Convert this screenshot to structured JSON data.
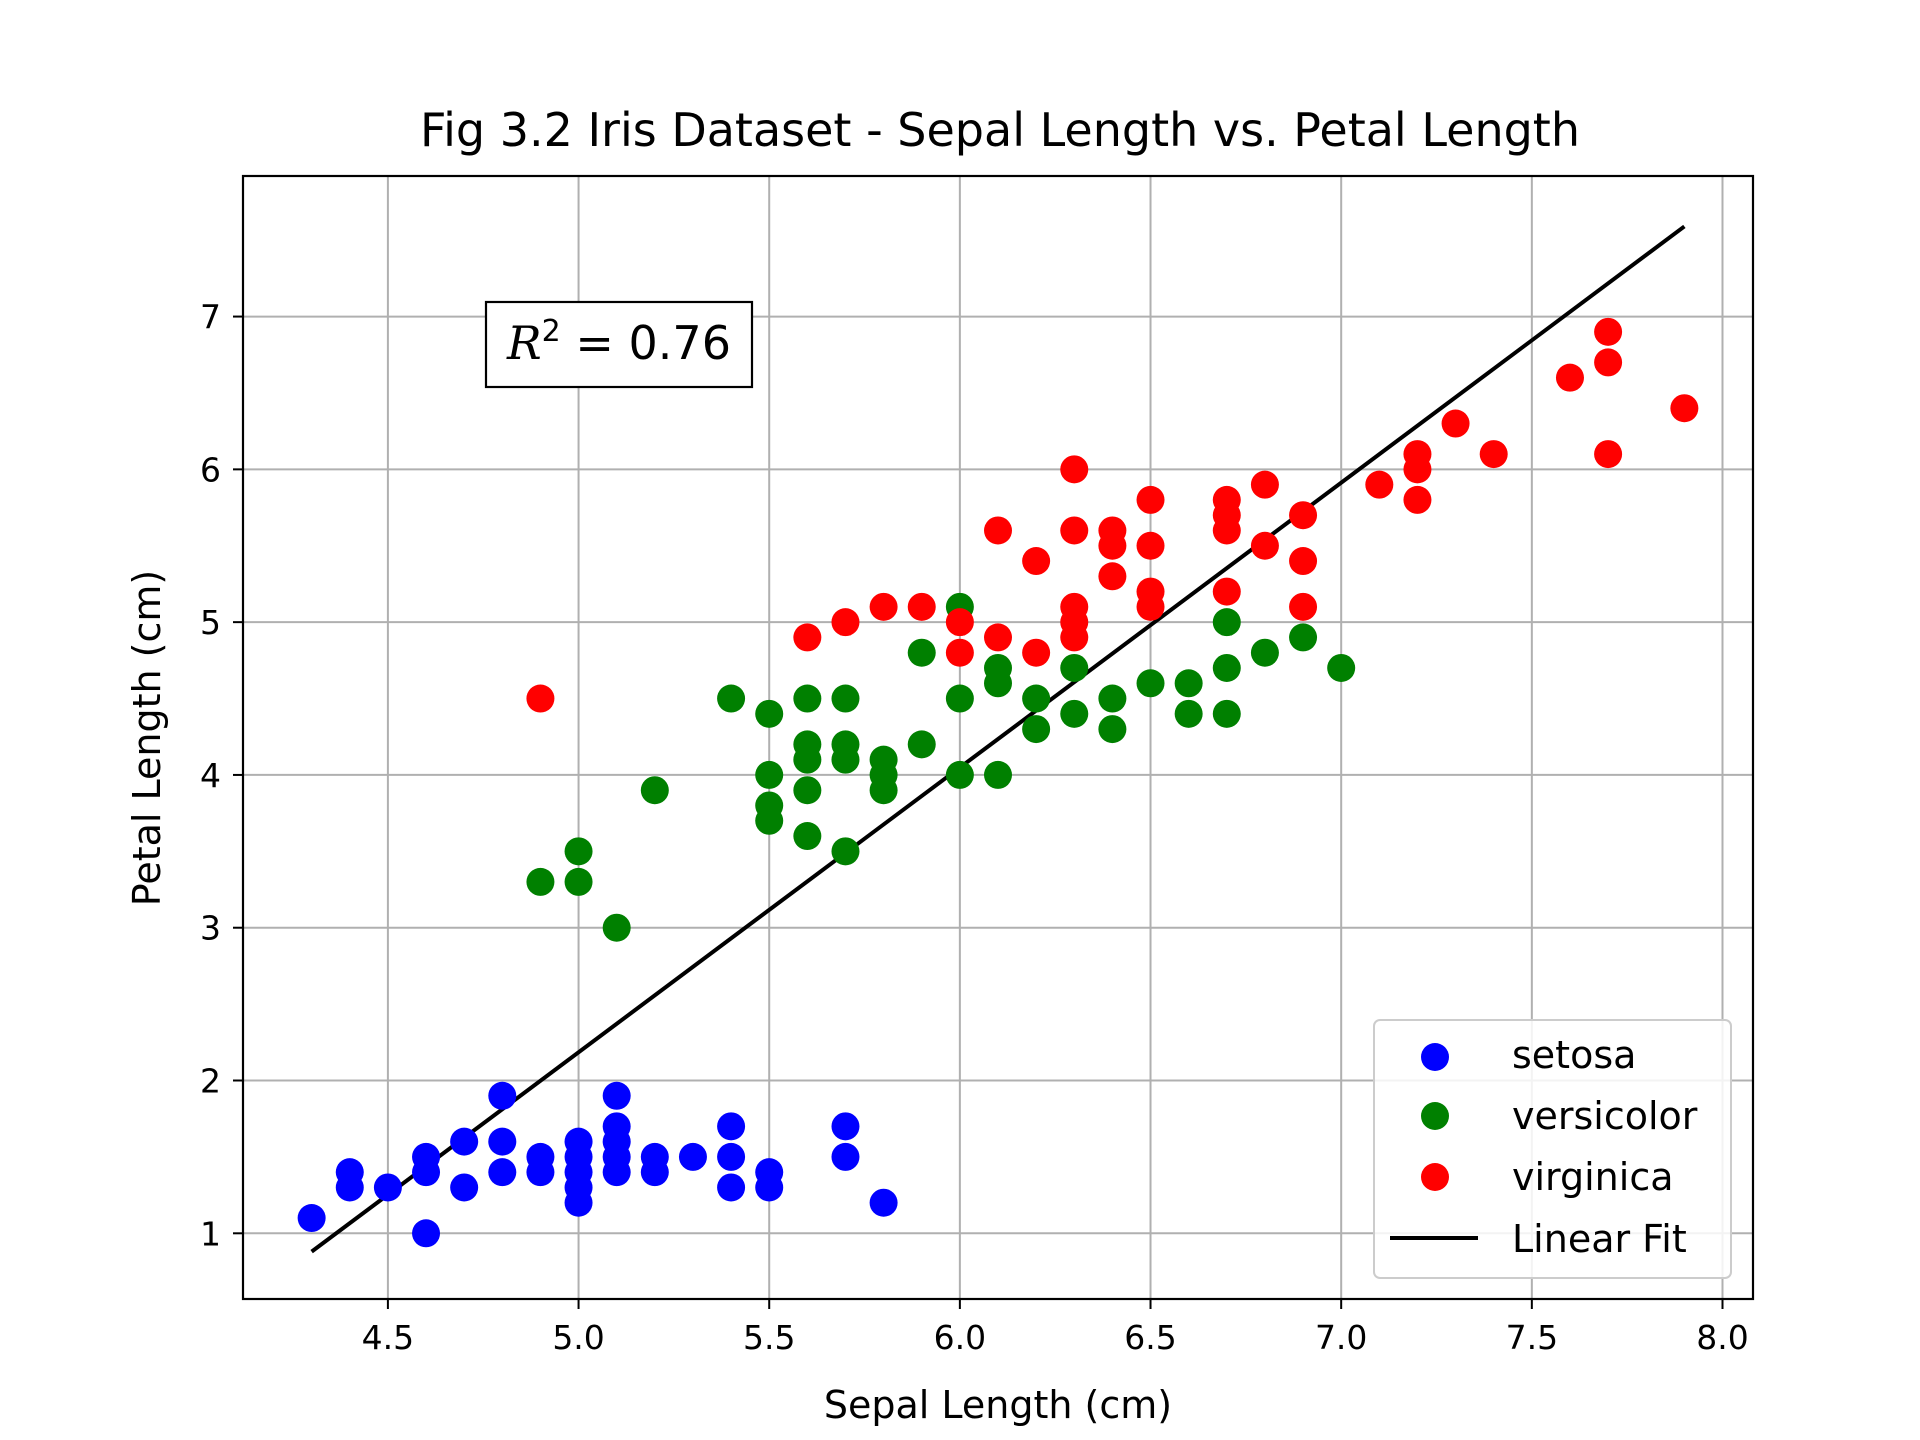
{
  "chart_data": {
    "type": "scatter",
    "title": "Fig 3.2 Iris Dataset - Sepal Length vs. Petal Length",
    "xlabel": "Sepal Length (cm)",
    "ylabel": "Petal Length (cm)",
    "xlim": [
      4.12,
      8.08
    ],
    "ylim": [
      0.57,
      7.92
    ],
    "xticks": [
      4.5,
      5.0,
      5.5,
      6.0,
      6.5,
      7.0,
      7.5,
      8.0
    ],
    "xtick_labels": [
      "4.5",
      "5.0",
      "5.5",
      "6.0",
      "6.5",
      "7.0",
      "7.5",
      "8.0"
    ],
    "yticks": [
      1,
      2,
      3,
      4,
      5,
      6,
      7
    ],
    "ytick_labels": [
      "1",
      "2",
      "3",
      "4",
      "5",
      "6",
      "7"
    ],
    "grid": true,
    "legend_position": "lower-right",
    "annotation": {
      "prefix": "R",
      "superscript": "2",
      "text": " = 0.76"
    },
    "series": [
      {
        "name": "setosa",
        "color": "#0000ff",
        "points": [
          [
            4.3,
            1.1
          ],
          [
            4.4,
            1.3
          ],
          [
            4.4,
            1.4
          ],
          [
            4.5,
            1.3
          ],
          [
            4.6,
            1.0
          ],
          [
            4.6,
            1.4
          ],
          [
            4.6,
            1.5
          ],
          [
            4.7,
            1.3
          ],
          [
            4.7,
            1.6
          ],
          [
            4.8,
            1.4
          ],
          [
            4.8,
            1.6
          ],
          [
            4.8,
            1.9
          ],
          [
            4.9,
            1.4
          ],
          [
            4.9,
            1.5
          ],
          [
            5.0,
            1.2
          ],
          [
            5.0,
            1.3
          ],
          [
            5.0,
            1.4
          ],
          [
            5.0,
            1.5
          ],
          [
            5.0,
            1.6
          ],
          [
            5.1,
            1.4
          ],
          [
            5.1,
            1.5
          ],
          [
            5.1,
            1.6
          ],
          [
            5.1,
            1.7
          ],
          [
            5.1,
            1.9
          ],
          [
            5.2,
            1.4
          ],
          [
            5.2,
            1.5
          ],
          [
            5.3,
            1.5
          ],
          [
            5.4,
            1.3
          ],
          [
            5.4,
            1.5
          ],
          [
            5.4,
            1.7
          ],
          [
            5.5,
            1.3
          ],
          [
            5.5,
            1.4
          ],
          [
            5.7,
            1.5
          ],
          [
            5.7,
            1.7
          ],
          [
            5.8,
            1.2
          ]
        ]
      },
      {
        "name": "versicolor",
        "color": "#008000",
        "points": [
          [
            4.9,
            3.3
          ],
          [
            5.0,
            3.3
          ],
          [
            5.0,
            3.5
          ],
          [
            5.1,
            3.0
          ],
          [
            5.2,
            3.9
          ],
          [
            5.4,
            4.5
          ],
          [
            5.5,
            3.7
          ],
          [
            5.5,
            3.8
          ],
          [
            5.5,
            4.0
          ],
          [
            5.5,
            4.4
          ],
          [
            5.6,
            3.6
          ],
          [
            5.6,
            3.9
          ],
          [
            5.6,
            4.1
          ],
          [
            5.6,
            4.2
          ],
          [
            5.6,
            4.5
          ],
          [
            5.7,
            3.5
          ],
          [
            5.7,
            4.1
          ],
          [
            5.7,
            4.2
          ],
          [
            5.7,
            4.5
          ],
          [
            5.8,
            3.9
          ],
          [
            5.8,
            4.0
          ],
          [
            5.8,
            4.1
          ],
          [
            5.9,
            4.2
          ],
          [
            5.9,
            4.8
          ],
          [
            6.0,
            4.0
          ],
          [
            6.0,
            4.5
          ],
          [
            6.0,
            5.1
          ],
          [
            6.1,
            4.0
          ],
          [
            6.1,
            4.6
          ],
          [
            6.1,
            4.7
          ],
          [
            6.2,
            4.3
          ],
          [
            6.2,
            4.5
          ],
          [
            6.3,
            4.4
          ],
          [
            6.3,
            4.7
          ],
          [
            6.4,
            4.3
          ],
          [
            6.4,
            4.5
          ],
          [
            6.5,
            4.6
          ],
          [
            6.6,
            4.4
          ],
          [
            6.6,
            4.6
          ],
          [
            6.7,
            4.4
          ],
          [
            6.7,
            4.7
          ],
          [
            6.7,
            5.0
          ],
          [
            6.8,
            4.8
          ],
          [
            6.9,
            4.9
          ],
          [
            7.0,
            4.7
          ]
        ]
      },
      {
        "name": "virginica",
        "color": "#ff0000",
        "points": [
          [
            4.9,
            4.5
          ],
          [
            5.6,
            4.9
          ],
          [
            5.7,
            5.0
          ],
          [
            5.8,
            5.1
          ],
          [
            5.9,
            5.1
          ],
          [
            6.0,
            4.8
          ],
          [
            6.0,
            5.0
          ],
          [
            6.1,
            4.9
          ],
          [
            6.1,
            5.6
          ],
          [
            6.2,
            4.8
          ],
          [
            6.2,
            5.4
          ],
          [
            6.3,
            4.9
          ],
          [
            6.3,
            5.0
          ],
          [
            6.3,
            5.1
          ],
          [
            6.3,
            5.6
          ],
          [
            6.3,
            6.0
          ],
          [
            6.4,
            5.3
          ],
          [
            6.4,
            5.5
          ],
          [
            6.4,
            5.6
          ],
          [
            6.5,
            5.1
          ],
          [
            6.5,
            5.2
          ],
          [
            6.5,
            5.5
          ],
          [
            6.5,
            5.8
          ],
          [
            6.7,
            5.2
          ],
          [
            6.7,
            5.6
          ],
          [
            6.7,
            5.7
          ],
          [
            6.7,
            5.8
          ],
          [
            6.8,
            5.5
          ],
          [
            6.8,
            5.9
          ],
          [
            6.9,
            5.1
          ],
          [
            6.9,
            5.4
          ],
          [
            6.9,
            5.7
          ],
          [
            7.1,
            5.9
          ],
          [
            7.2,
            5.8
          ],
          [
            7.2,
            6.0
          ],
          [
            7.2,
            6.1
          ],
          [
            7.3,
            6.3
          ],
          [
            7.4,
            6.1
          ],
          [
            7.6,
            6.6
          ],
          [
            7.7,
            6.1
          ],
          [
            7.7,
            6.7
          ],
          [
            7.7,
            6.9
          ],
          [
            7.9,
            6.4
          ]
        ]
      }
    ],
    "fit_line": {
      "name": "Linear Fit",
      "color": "#000000",
      "points": [
        [
          4.3,
          0.88
        ],
        [
          7.9,
          7.59
        ]
      ]
    }
  }
}
